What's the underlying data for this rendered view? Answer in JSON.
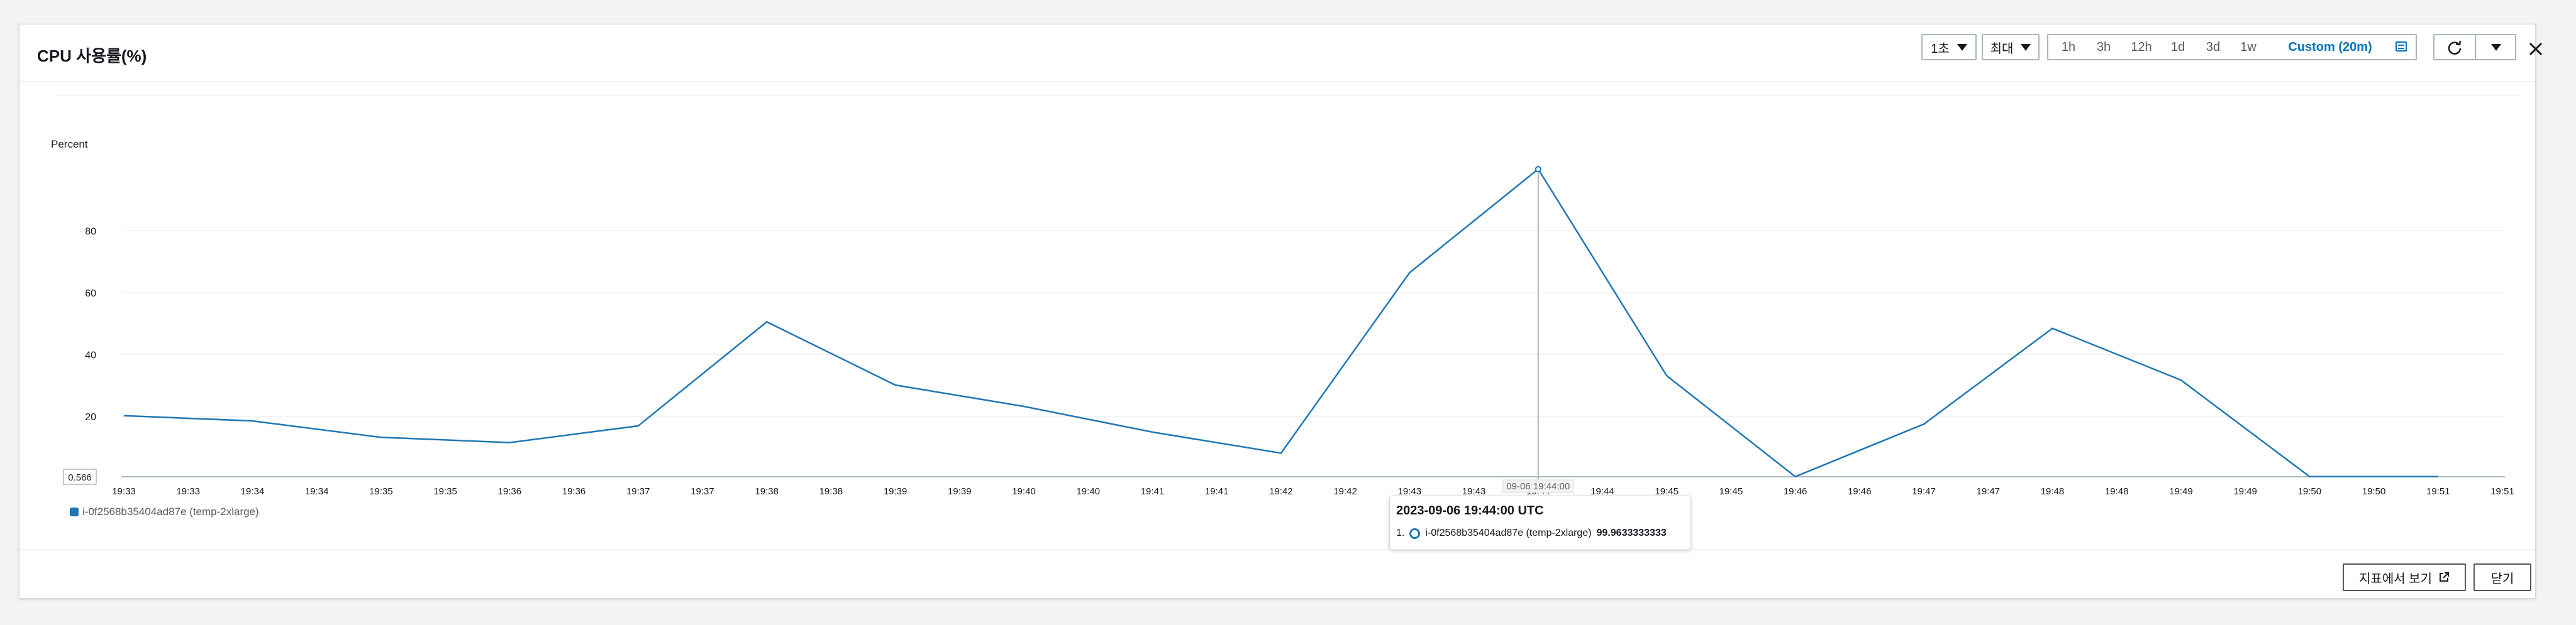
{
  "header": {
    "title": "CPU 사용률(%)",
    "period": "1초",
    "statistic": "최대",
    "ranges": [
      "1h",
      "3h",
      "12h",
      "1d",
      "3d",
      "1w",
      "Custom (20m)"
    ],
    "active_range": "Custom (20m)"
  },
  "footer": {
    "metrics_button": "지표에서 보기",
    "close_button": "닫기"
  },
  "tooltip": {
    "timestamp": "2023-09-06 19:44:00 UTC",
    "index": "1.",
    "series": "i-0f2568b35404ad87e (temp-2xlarge)",
    "value": "99.9633333333"
  },
  "crosshair_label": "09-06 19:44:00",
  "chart_data": {
    "type": "line",
    "ylabel": "Percent",
    "ylim": [
      0.566,
      100
    ],
    "yticks": [
      "20",
      "40",
      "60",
      "80"
    ],
    "ymin_label": "0.566",
    "x_tick_labels": [
      "19:33",
      "19:33",
      "19:34",
      "19:34",
      "19:35",
      "19:35",
      "19:36",
      "19:36",
      "19:37",
      "19:37",
      "19:38",
      "19:38",
      "19:39",
      "19:39",
      "19:40",
      "19:40",
      "19:41",
      "19:41",
      "19:42",
      "19:42",
      "19:43",
      "19:43",
      "19:44",
      "19:44",
      "19:45",
      "19:45",
      "19:46",
      "19:46",
      "19:47",
      "19:47",
      "19:48",
      "19:48",
      "19:49",
      "19:49",
      "19:50",
      "19:50",
      "19:51",
      "19:51"
    ],
    "grid": true,
    "series": [
      {
        "name": "i-0f2568b35404ad87e (temp-2xlarge)",
        "color": "#1f77b4",
        "x": [
          "19:33",
          "19:34",
          "19:35",
          "19:36",
          "19:37",
          "19:38",
          "19:39",
          "19:40",
          "19:41",
          "19:42",
          "19:43",
          "19:44",
          "19:45",
          "19:46",
          "19:47",
          "19:48",
          "19:49",
          "19:50",
          "19:51"
        ],
        "values": [
          20.3,
          18.6,
          13.3,
          11.6,
          17.0,
          50.6,
          30.2,
          23.3,
          15.0,
          8.2,
          66.5,
          99.96,
          33.2,
          0.6,
          17.6,
          48.5,
          31.8,
          0.6,
          0.6
        ]
      }
    ]
  }
}
